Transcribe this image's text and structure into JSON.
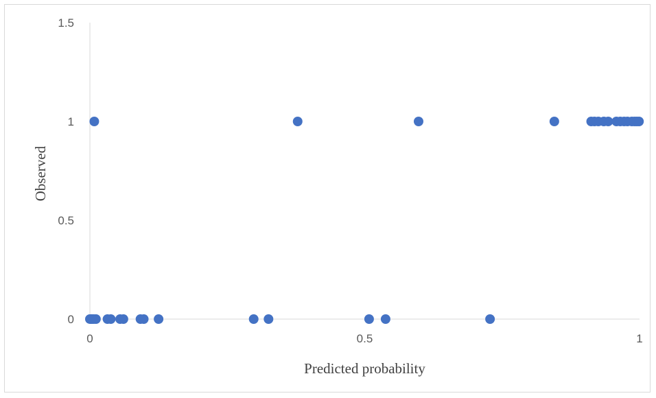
{
  "chart_data": {
    "type": "scatter",
    "title": "",
    "xlabel": "Predicted probability",
    "ylabel": "Observed",
    "xlim": [
      0,
      1
    ],
    "ylim": [
      0,
      1.5
    ],
    "x_ticks": [
      "0",
      "0.5",
      "1"
    ],
    "y_ticks": [
      "0",
      "0.5",
      "1",
      "1.5"
    ],
    "x_tick_values": [
      0,
      0.5,
      1
    ],
    "y_tick_values": [
      0,
      0.5,
      1,
      1.5
    ],
    "grid": false,
    "legend": "none",
    "marker_color": "#4472c4",
    "points": [
      {
        "x": 0.008,
        "y": 1
      },
      {
        "x": 0.378,
        "y": 1
      },
      {
        "x": 0.598,
        "y": 1
      },
      {
        "x": 0.845,
        "y": 1
      },
      {
        "x": 0.912,
        "y": 1
      },
      {
        "x": 0.918,
        "y": 1
      },
      {
        "x": 0.925,
        "y": 1
      },
      {
        "x": 0.935,
        "y": 1
      },
      {
        "x": 0.943,
        "y": 1
      },
      {
        "x": 0.958,
        "y": 1
      },
      {
        "x": 0.965,
        "y": 1
      },
      {
        "x": 0.972,
        "y": 1
      },
      {
        "x": 0.978,
        "y": 1
      },
      {
        "x": 0.986,
        "y": 1
      },
      {
        "x": 0.991,
        "y": 1
      },
      {
        "x": 0.995,
        "y": 1
      },
      {
        "x": 0.999,
        "y": 1
      },
      {
        "x": 0.0,
        "y": 0
      },
      {
        "x": 0.002,
        "y": 0
      },
      {
        "x": 0.004,
        "y": 0
      },
      {
        "x": 0.007,
        "y": 0
      },
      {
        "x": 0.011,
        "y": 0
      },
      {
        "x": 0.032,
        "y": 0
      },
      {
        "x": 0.038,
        "y": 0
      },
      {
        "x": 0.055,
        "y": 0
      },
      {
        "x": 0.061,
        "y": 0
      },
      {
        "x": 0.092,
        "y": 0
      },
      {
        "x": 0.098,
        "y": 0
      },
      {
        "x": 0.125,
        "y": 0
      },
      {
        "x": 0.298,
        "y": 0
      },
      {
        "x": 0.325,
        "y": 0
      },
      {
        "x": 0.508,
        "y": 0
      },
      {
        "x": 0.538,
        "y": 0
      },
      {
        "x": 0.728,
        "y": 0
      }
    ]
  }
}
